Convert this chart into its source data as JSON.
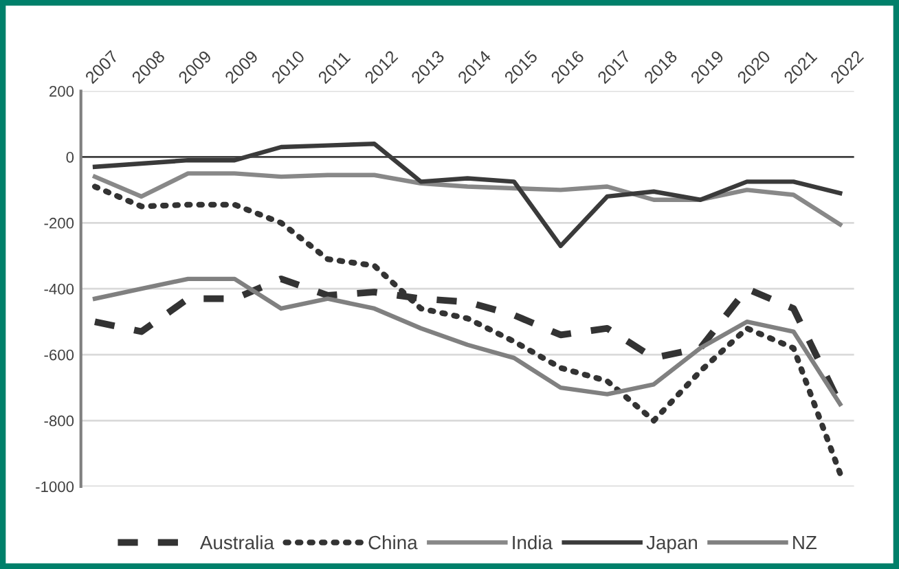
{
  "chart_data": {
    "type": "line",
    "categories": [
      "2007",
      "2008",
      "2009",
      "2009",
      "2010",
      "2011",
      "2012",
      "2013",
      "2014",
      "2015",
      "2016",
      "2017",
      "2018",
      "2019",
      "2020",
      "2021",
      "2022"
    ],
    "series": [
      {
        "name": "Australia",
        "color": "#333333",
        "line_style": "dashed",
        "values": [
          -500,
          -530,
          -430,
          -430,
          -370,
          -420,
          -410,
          -430,
          -440,
          -480,
          -540,
          -520,
          -610,
          -580,
          -400,
          -460,
          -750
        ]
      },
      {
        "name": "China",
        "color": "#333333",
        "line_style": "dotted",
        "values": [
          -90,
          -150,
          -145,
          -145,
          -200,
          -310,
          -330,
          -460,
          -490,
          -560,
          -640,
          -680,
          -800,
          -650,
          -520,
          -580,
          -960
        ]
      },
      {
        "name": "India",
        "color": "#888888",
        "line_style": "solid",
        "values": [
          -60,
          -120,
          -50,
          -50,
          -60,
          -55,
          -55,
          -80,
          -90,
          -95,
          -100,
          -90,
          -130,
          -130,
          -100,
          -115,
          -205
        ]
      },
      {
        "name": "Japan",
        "color": "#3a3a3a",
        "line_style": "solid",
        "values": [
          -30,
          -20,
          -10,
          -10,
          30,
          35,
          40,
          -75,
          -65,
          -75,
          -270,
          -120,
          -105,
          -130,
          -75,
          -75,
          -110
        ]
      },
      {
        "name": "NZ",
        "color": "#808080",
        "line_style": "solid",
        "values": [
          -430,
          -400,
          -370,
          -370,
          -460,
          -430,
          -460,
          -520,
          -570,
          -610,
          -700,
          -720,
          -690,
          -580,
          -500,
          -530,
          -750
        ]
      }
    ],
    "ylim": [
      -1000,
      200
    ],
    "yticks": [
      -1000,
      -800,
      -600,
      -400,
      -200,
      0,
      200
    ],
    "grid": "y",
    "legend": "bottom",
    "marker": "none"
  }
}
